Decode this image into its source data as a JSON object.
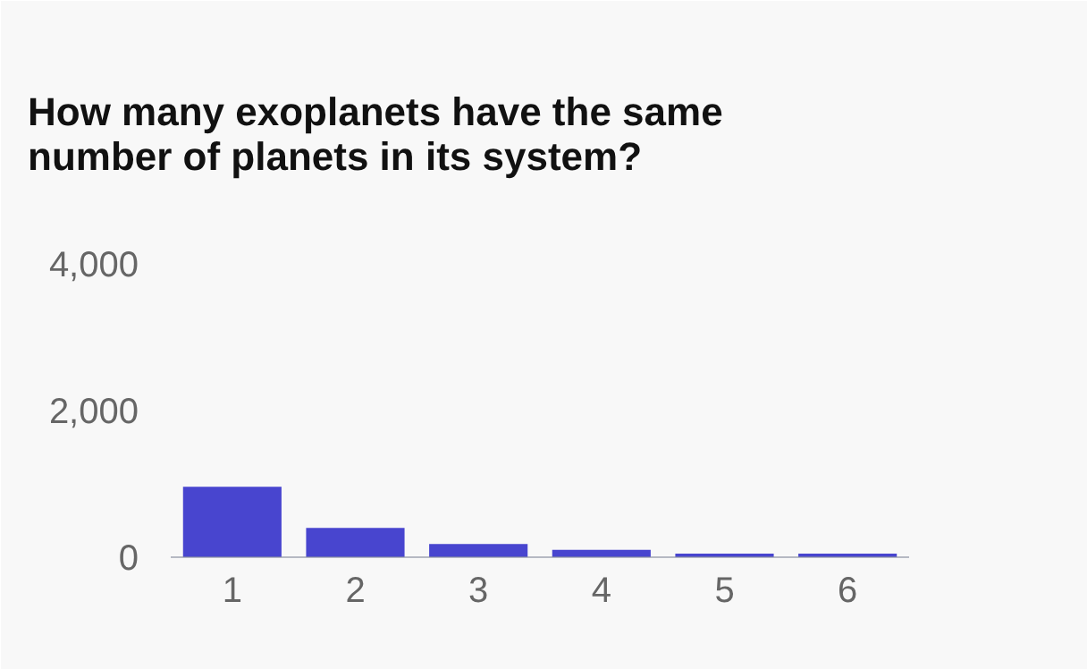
{
  "chart_data": {
    "type": "bar",
    "title": "How many exoplanets have the same number of planets in its system?",
    "categories": [
      "1",
      "2",
      "3",
      "4",
      "5",
      "6"
    ],
    "values": [
      960,
      400,
      180,
      100,
      50,
      50
    ],
    "color": "#4845cf",
    "ylim": [
      0,
      4000
    ],
    "yticks": [
      0,
      {
        "value": 2000,
        "label": "2,000"
      },
      {
        "value": 4000,
        "label": "4,000"
      }
    ],
    "grid": false
  }
}
